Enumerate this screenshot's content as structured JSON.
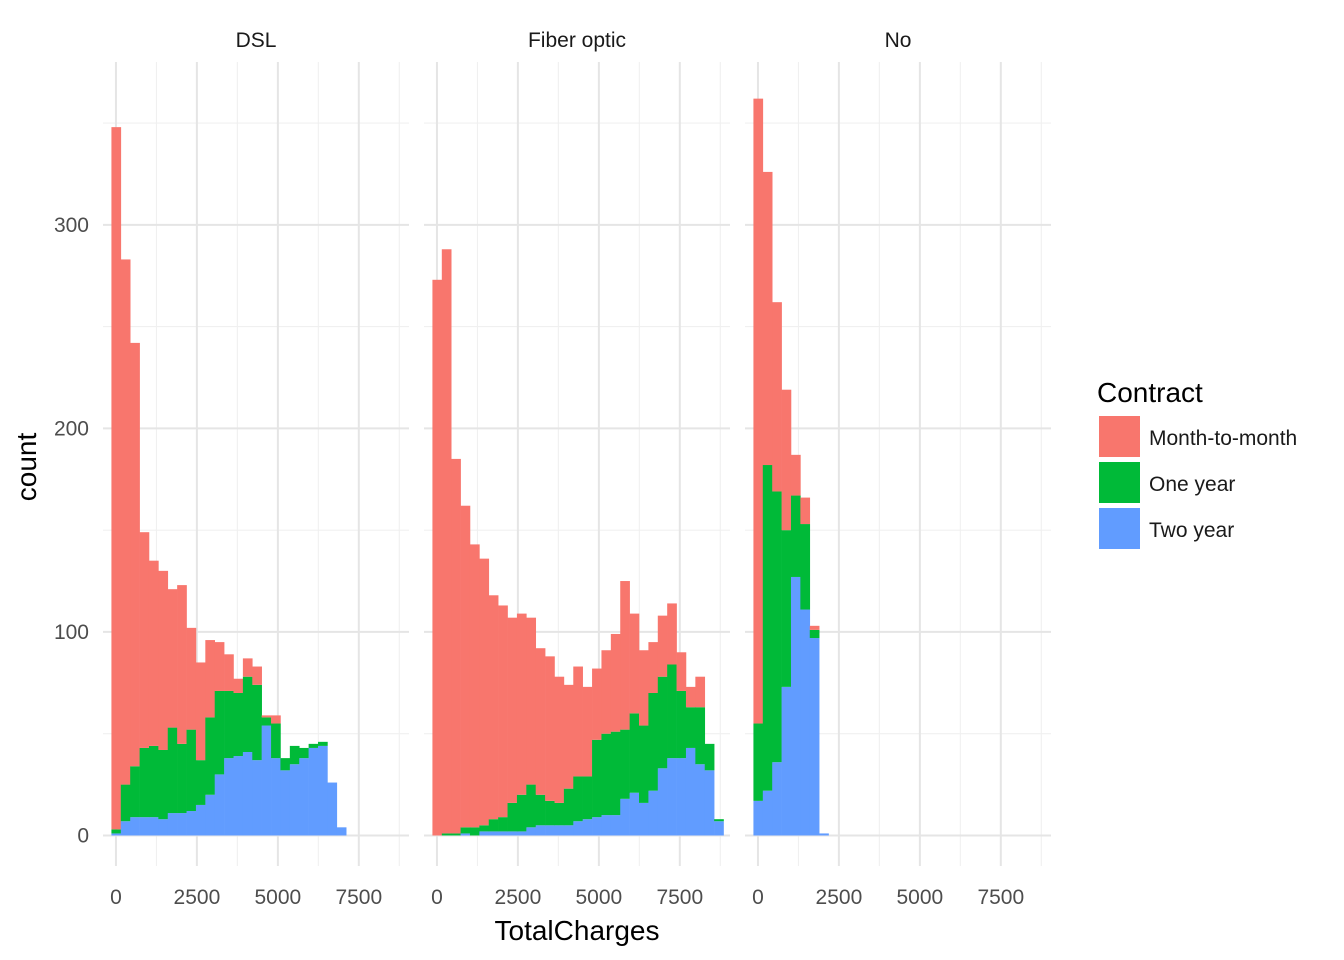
{
  "chart_data": {
    "type": "bar",
    "stacking": "stacked histogram",
    "facets": [
      "DSL",
      "Fiber optic",
      "No"
    ],
    "xlabel": "TotalCharges",
    "ylabel": "count",
    "xlim": [
      -400,
      9050
    ],
    "ylim": [
      -15,
      380
    ],
    "x_ticks": [
      0,
      2500,
      5000,
      7500
    ],
    "y_ticks": [
      0,
      100,
      200,
      300
    ],
    "bin_width": 290,
    "bin_starts": [
      -140,
      150,
      440,
      730,
      1020,
      1310,
      1600,
      1890,
      2180,
      2470,
      2760,
      3050,
      3340,
      3630,
      3920,
      4210,
      4500,
      4790,
      5080,
      5370,
      5660,
      5950,
      6240,
      6530,
      6820,
      7110,
      7400,
      7690,
      7980,
      8270,
      8560
    ],
    "grid": true,
    "legend": {
      "title": "Contract",
      "position": "right",
      "entries": [
        {
          "label": "Month-to-month",
          "color": "#F8766D"
        },
        {
          "label": "One year",
          "color": "#00BA38"
        },
        {
          "label": "Two year",
          "color": "#619CFF"
        }
      ]
    },
    "panels": [
      {
        "facet": "DSL",
        "series": [
          {
            "name": "Month-to-month",
            "values": [
              345,
              258,
              208,
              106,
              91,
              88,
              68,
              78,
              50,
              48,
              38,
              24,
              18,
              7,
              9,
              9,
              1,
              4,
              0,
              0,
              0,
              0,
              0,
              0,
              0,
              0,
              0,
              0,
              0,
              0,
              0
            ]
          },
          {
            "name": "One year",
            "values": [
              2,
              18,
              25,
              34,
              35,
              34,
              42,
              34,
              40,
              22,
              38,
              41,
              33,
              31,
              37,
              37,
              4,
              17,
              6,
              9,
              5,
              2,
              2,
              0,
              0,
              0,
              0,
              0,
              0,
              0,
              0
            ]
          },
          {
            "name": "Two year",
            "values": [
              1,
              7,
              9,
              9,
              9,
              8,
              11,
              11,
              12,
              15,
              20,
              30,
              38,
              39,
              41,
              37,
              54,
              38,
              32,
              35,
              38,
              43,
              44,
              26,
              4,
              0,
              0,
              0,
              0,
              0,
              0
            ]
          }
        ]
      },
      {
        "facet": "Fiber optic",
        "series": [
          {
            "name": "Month-to-month",
            "values": [
              273,
              287,
              184,
              158,
              139,
              131,
              110,
              104,
              91,
              89,
              82,
              72,
              71,
              62,
              51,
              54,
              44,
              35,
              41,
              48,
              73,
              49,
              37,
              25,
              30,
              30,
              19,
              10,
              15,
              0,
              0
            ]
          },
          {
            "name": "One year",
            "values": [
              0,
              1,
              1,
              3,
              4,
              3,
              6,
              7,
              14,
              18,
              21,
              15,
              12,
              11,
              18,
              22,
              21,
              38,
              40,
              41,
              34,
              39,
              38,
              48,
              45,
              46,
              33,
              20,
              28,
              13,
              1
            ]
          },
          {
            "name": "Two year",
            "values": [
              0,
              0,
              0,
              1,
              0,
              2,
              2,
              2,
              2,
              2,
              4,
              5,
              5,
              5,
              5,
              7,
              8,
              9,
              10,
              10,
              18,
              21,
              16,
              22,
              33,
              38,
              38,
              43,
              35,
              32,
              7
            ]
          }
        ]
      },
      {
        "facet": "No",
        "series": [
          {
            "name": "Month-to-month",
            "values": [
              307,
              144,
              93,
              69,
              20,
              13,
              2,
              0,
              0,
              0,
              0,
              0,
              0,
              0,
              0,
              0,
              0,
              0,
              0,
              0,
              0,
              0,
              0,
              0,
              0,
              0,
              0,
              0,
              0,
              0,
              0
            ]
          },
          {
            "name": "One year",
            "values": [
              38,
              160,
              133,
              77,
              40,
              42,
              4,
              0,
              0,
              0,
              0,
              0,
              0,
              0,
              0,
              0,
              0,
              0,
              0,
              0,
              0,
              0,
              0,
              0,
              0,
              0,
              0,
              0,
              0,
              0,
              0
            ]
          },
          {
            "name": "Two year",
            "values": [
              17,
              22,
              36,
              73,
              127,
              111,
              97,
              1,
              0,
              0,
              0,
              0,
              0,
              0,
              0,
              0,
              0,
              0,
              0,
              0,
              0,
              0,
              0,
              0,
              0,
              0,
              0,
              0,
              0,
              0,
              0
            ]
          }
        ]
      }
    ]
  }
}
